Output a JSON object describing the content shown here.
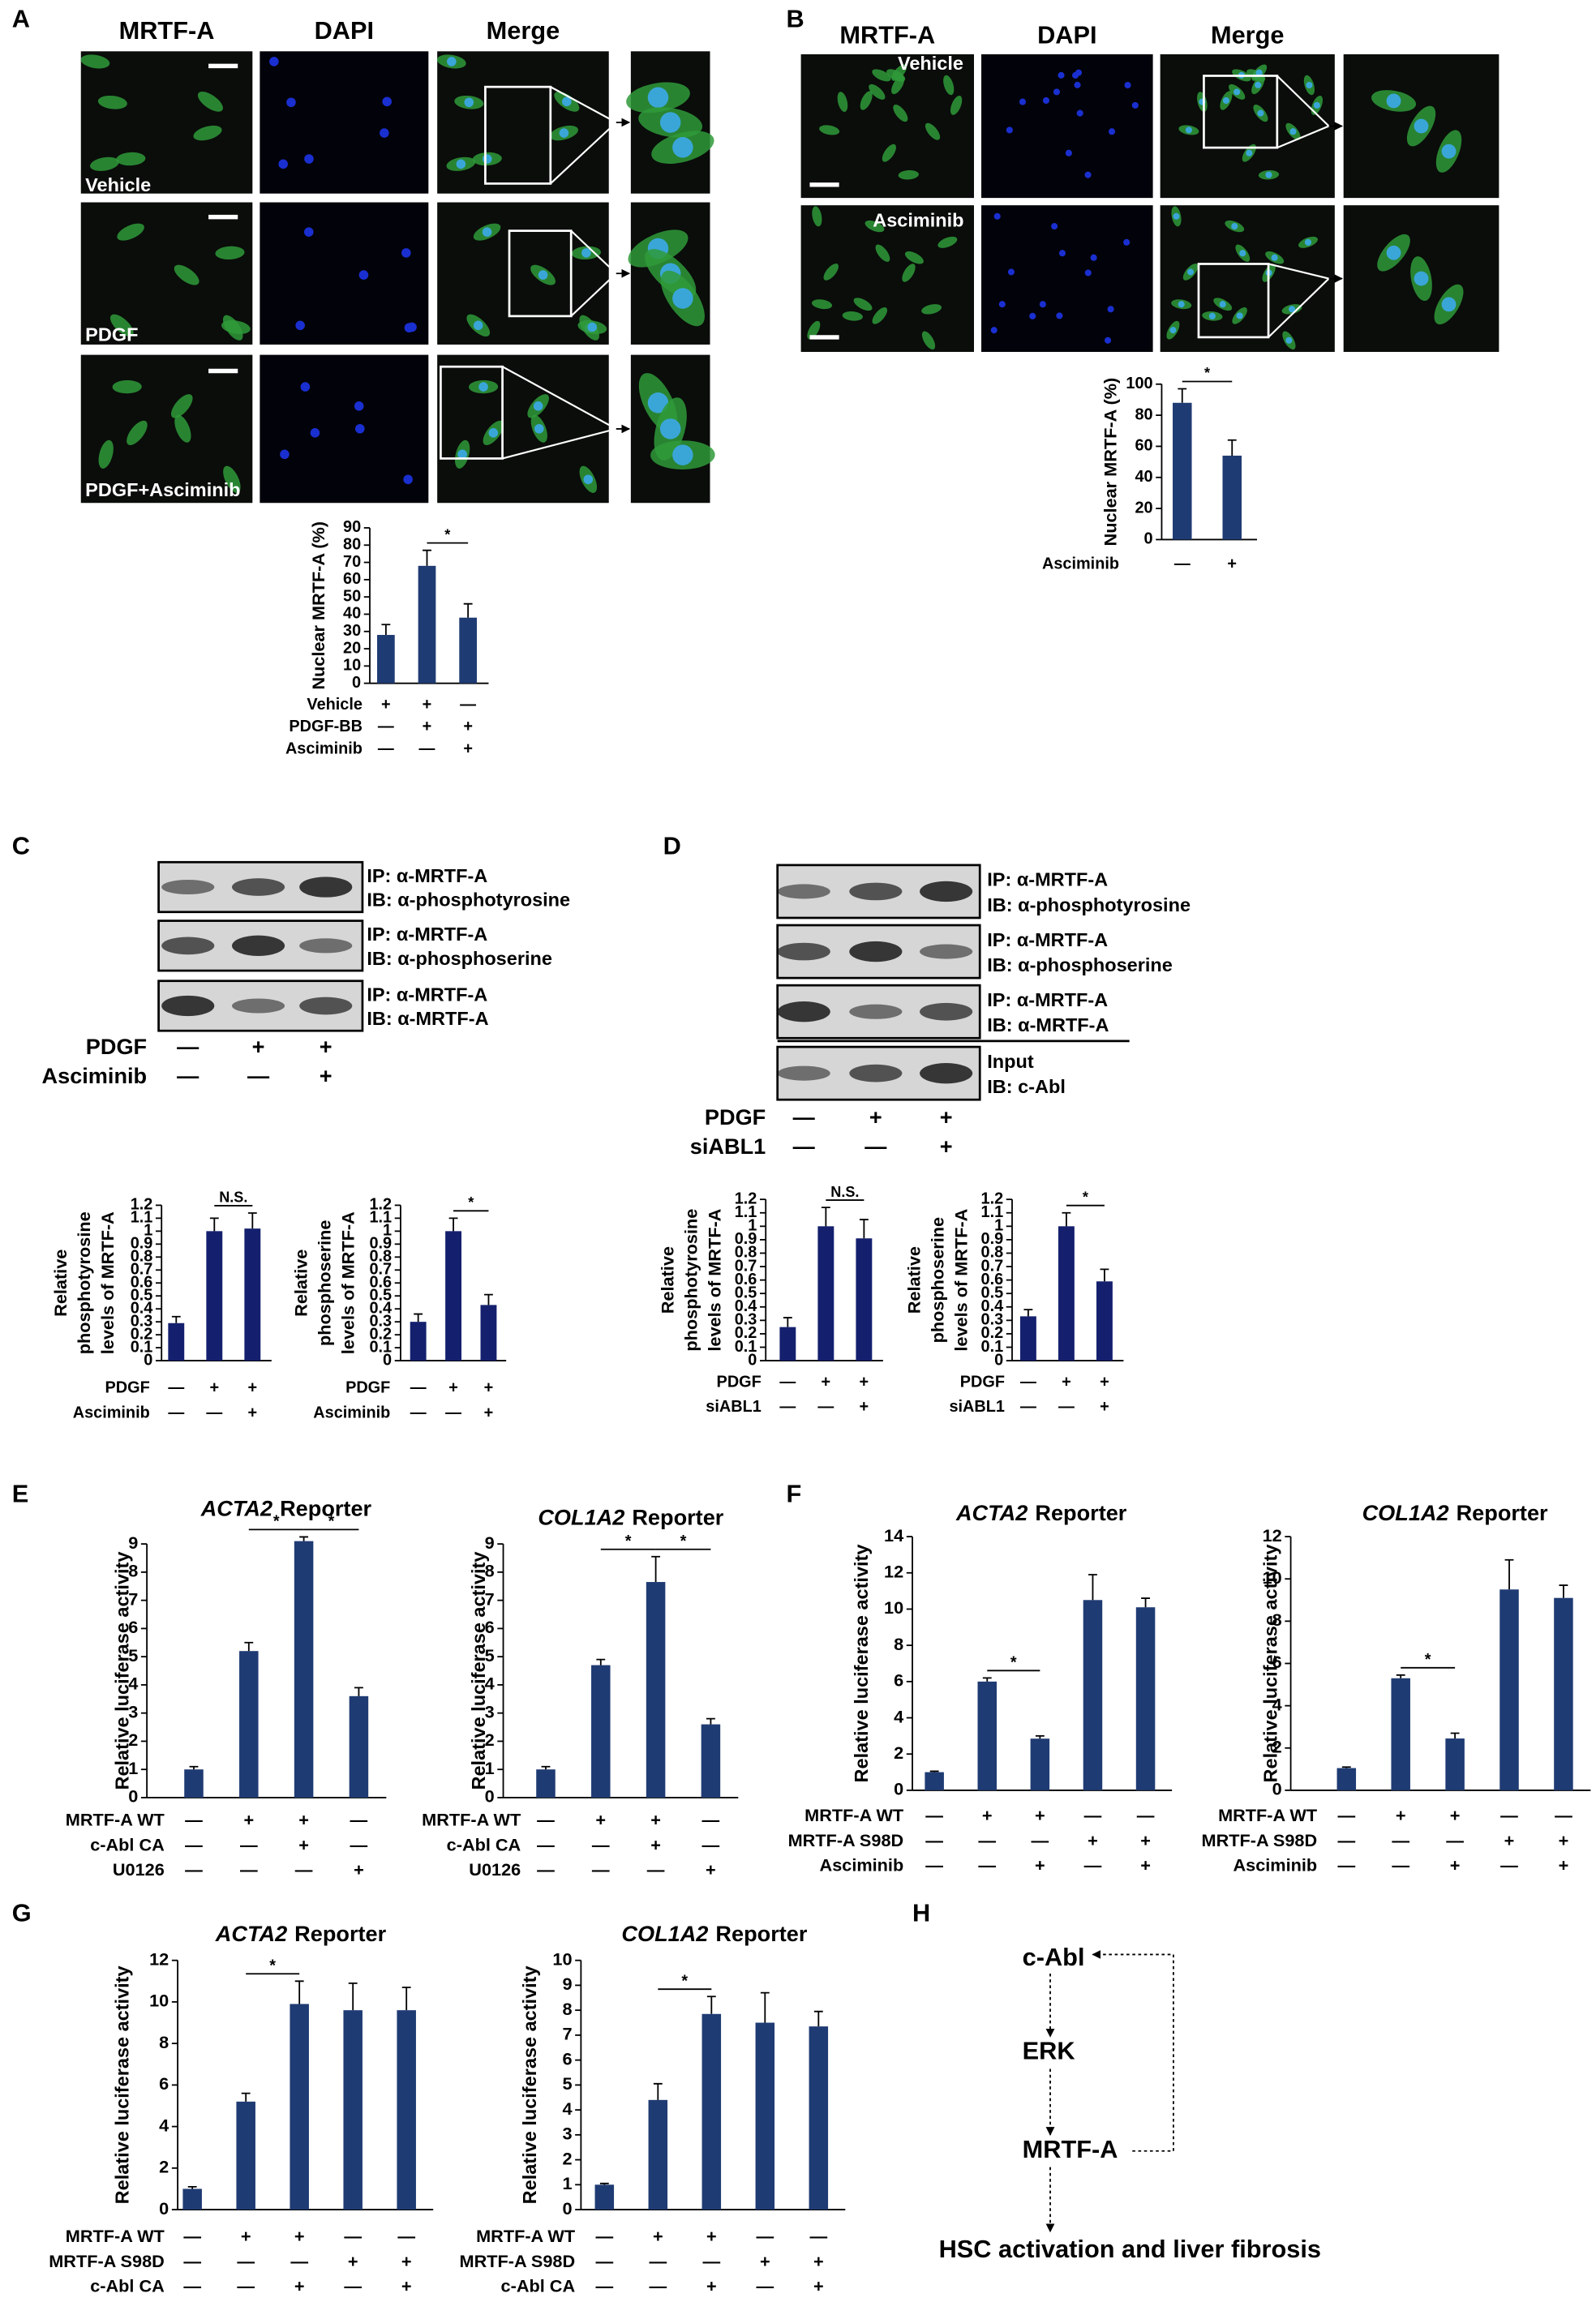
{
  "panels": [
    "A",
    "B",
    "C",
    "D",
    "E",
    "F",
    "G",
    "H"
  ],
  "panel_a": {
    "columns": [
      "MRTF-A",
      "DAPI",
      "Merge"
    ],
    "rows": [
      "Vehicle",
      "PDGF",
      "PDGF+Asciminib"
    ]
  },
  "panel_b": {
    "columns": [
      "MRTF-A",
      "DAPI",
      "Merge"
    ],
    "rows": [
      "Vehicle",
      "Asciminib"
    ]
  },
  "panel_c": {
    "blots": [
      {
        "ip": "IP: α-MRTF-A",
        "ib": "IB: α-phosphotyrosine"
      },
      {
        "ip": "IP: α-MRTF-A",
        "ib": "IB: α-phosphoserine"
      },
      {
        "ip": "IP: α-MRTF-A",
        "ib": "IB: α-MRTF-A"
      }
    ],
    "conditions": [
      {
        "name": "PDGF",
        "signs": [
          "—",
          "+",
          "+"
        ]
      },
      {
        "name": "Asciminib",
        "signs": [
          "—",
          "—",
          "+"
        ]
      }
    ]
  },
  "panel_d": {
    "blots": [
      {
        "ip": "IP: α-MRTF-A",
        "ib": "IB: α-phosphotyrosine"
      },
      {
        "ip": "IP: α-MRTF-A",
        "ib": "IB: α-phosphoserine"
      },
      {
        "ip": "IP: α-MRTF-A",
        "ib": "IB: α-MRTF-A"
      },
      {
        "ip": "Input",
        "ib": "IB: c-Abl"
      }
    ],
    "conditions": [
      {
        "name": "PDGF",
        "signs": [
          "—",
          "+",
          "+"
        ]
      },
      {
        "name": "siABL1",
        "signs": [
          "—",
          "—",
          "+"
        ]
      }
    ]
  },
  "panel_h": {
    "nodes": [
      "c-Abl",
      "ERK",
      "MRTF-A",
      "HSC activation and liver fibrosis"
    ]
  },
  "chart_data": [
    {
      "type": "bar",
      "ylabel": [
        "Nuclear MRTF-A (%)"
      ],
      "values": [
        28,
        68,
        38
      ],
      "errors": [
        6,
        9,
        8
      ],
      "color": "#1f3b73",
      "ylim": [
        0,
        90
      ],
      "yticks": [
        0,
        10,
        20,
        30,
        40,
        50,
        60,
        70,
        80,
        90
      ],
      "conditions": [
        {
          "name": "Vehicle",
          "signs": [
            "+",
            "+",
            "—"
          ]
        },
        {
          "name": "PDGF-BB",
          "signs": [
            "—",
            "+",
            "+"
          ]
        },
        {
          "name": "Asciminib",
          "signs": [
            "—",
            "—",
            "+"
          ]
        }
      ],
      "significance": [
        {
          "label": "*",
          "bars": [
            1,
            2
          ]
        }
      ]
    },
    {
      "type": "bar",
      "ylabel": [
        "Nuclear MRTF-A (%)"
      ],
      "values": [
        88,
        54
      ],
      "errors": [
        9,
        10
      ],
      "color": "#1f3b73",
      "ylim": [
        0,
        100
      ],
      "yticks": [
        0,
        20,
        40,
        60,
        80,
        100
      ],
      "conditions": [
        {
          "name": "Asciminib",
          "signs": [
            "—",
            "+"
          ]
        }
      ],
      "significance": [
        {
          "label": "*",
          "bars": [
            0,
            1
          ]
        }
      ]
    },
    {
      "type": "bar",
      "ylabel": [
        "Relative",
        "phosphotyrosine",
        "levels of MRTF-A"
      ],
      "values": [
        0.29,
        1.0,
        1.02
      ],
      "errors": [
        0.05,
        0.1,
        0.12
      ],
      "color": "#14206e",
      "ylim": [
        0,
        1.2
      ],
      "yticks": [
        0,
        0.1,
        0.2,
        0.3,
        0.4,
        0.5,
        0.6,
        0.7,
        0.8,
        0.9,
        1,
        1.1,
        1.2
      ],
      "conditions": [
        {
          "name": "PDGF",
          "signs": [
            "—",
            "+",
            "+"
          ]
        },
        {
          "name": "Asciminib",
          "signs": [
            "—",
            "—",
            "+"
          ]
        }
      ],
      "significance": [
        {
          "label": "N.S.",
          "bars": [
            1,
            2
          ]
        }
      ]
    },
    {
      "type": "bar",
      "ylabel": [
        "Relative",
        "phosphoserine",
        "levels of MRTF-A"
      ],
      "values": [
        0.3,
        1.0,
        0.43
      ],
      "errors": [
        0.06,
        0.1,
        0.08
      ],
      "color": "#14206e",
      "ylim": [
        0,
        1.2
      ],
      "yticks": [
        0,
        0.1,
        0.2,
        0.3,
        0.4,
        0.5,
        0.6,
        0.7,
        0.8,
        0.9,
        1,
        1.1,
        1.2
      ],
      "conditions": [
        {
          "name": "PDGF",
          "signs": [
            "—",
            "+",
            "+"
          ]
        },
        {
          "name": "Asciminib",
          "signs": [
            "—",
            "—",
            "+"
          ]
        }
      ],
      "significance": [
        {
          "label": "*",
          "bars": [
            1,
            2
          ]
        }
      ]
    },
    {
      "type": "bar",
      "ylabel": [
        "Relative",
        "phosphotyrosine",
        "levels of MRTF-A"
      ],
      "values": [
        0.25,
        1.0,
        0.91
      ],
      "errors": [
        0.07,
        0.14,
        0.14
      ],
      "color": "#14206e",
      "ylim": [
        0,
        1.2
      ],
      "yticks": [
        0,
        0.1,
        0.2,
        0.3,
        0.4,
        0.5,
        0.6,
        0.7,
        0.8,
        0.9,
        1,
        1.1,
        1.2
      ],
      "conditions": [
        {
          "name": "PDGF",
          "signs": [
            "—",
            "+",
            "+"
          ]
        },
        {
          "name": "siABL1",
          "signs": [
            "—",
            "—",
            "+"
          ]
        }
      ],
      "significance": [
        {
          "label": "N.S.",
          "bars": [
            1,
            2
          ]
        }
      ]
    },
    {
      "type": "bar",
      "ylabel": [
        "Relative",
        "phosphoserine",
        "levels of MRTF-A"
      ],
      "values": [
        0.33,
        1.0,
        0.59
      ],
      "errors": [
        0.05,
        0.1,
        0.09
      ],
      "color": "#14206e",
      "ylim": [
        0,
        1.2
      ],
      "yticks": [
        0,
        0.1,
        0.2,
        0.3,
        0.4,
        0.5,
        0.6,
        0.7,
        0.8,
        0.9,
        1,
        1.1,
        1.2
      ],
      "conditions": [
        {
          "name": "PDGF",
          "signs": [
            "—",
            "+",
            "+"
          ]
        },
        {
          "name": "siABL1",
          "signs": [
            "—",
            "—",
            "+"
          ]
        }
      ],
      "significance": [
        {
          "label": "*",
          "bars": [
            1,
            2
          ]
        }
      ]
    },
    {
      "type": "bar",
      "title_italic": "ACTA2",
      "title": "Reporter",
      "ylabel": [
        "Relative luciferase activity"
      ],
      "values": [
        1,
        5.2,
        9.1,
        3.6
      ],
      "errors": [
        0.1,
        0.3,
        0.15,
        0.3
      ],
      "color": "#1f3b73",
      "ylim": [
        0,
        9
      ],
      "yticks": [
        0,
        1,
        2,
        3,
        4,
        5,
        6,
        7,
        8,
        9
      ],
      "conditions": [
        {
          "name": "MRTF-A WT",
          "signs": [
            "—",
            "+",
            "+",
            "—"
          ]
        },
        {
          "name": "c-Abl CA",
          "signs": [
            "—",
            "—",
            "+",
            "—"
          ]
        },
        {
          "name": "U0126",
          "signs": [
            "—",
            "—",
            "—",
            "+"
          ]
        }
      ],
      "significance": [
        {
          "label": "*",
          "bars": [
            1,
            2
          ]
        },
        {
          "label": "*",
          "bars": [
            2,
            3
          ]
        }
      ]
    },
    {
      "type": "bar",
      "title_italic": "COL1A2",
      "title": "Reporter",
      "ylabel": [
        "Relative luciferase activity"
      ],
      "values": [
        1,
        4.7,
        7.65,
        2.6
      ],
      "errors": [
        0.1,
        0.2,
        0.9,
        0.2
      ],
      "color": "#1f3b73",
      "ylim": [
        0,
        9
      ],
      "yticks": [
        0,
        1,
        2,
        3,
        4,
        5,
        6,
        7,
        8,
        9
      ],
      "conditions": [
        {
          "name": "MRTF-A WT",
          "signs": [
            "—",
            "+",
            "+",
            "—"
          ]
        },
        {
          "name": "c-Abl CA",
          "signs": [
            "—",
            "—",
            "+",
            "—"
          ]
        },
        {
          "name": "U0126",
          "signs": [
            "—",
            "—",
            "—",
            "+"
          ]
        }
      ],
      "significance": [
        {
          "label": "*",
          "bars": [
            1,
            2
          ]
        },
        {
          "label": "*",
          "bars": [
            2,
            3
          ]
        }
      ]
    },
    {
      "type": "bar",
      "title_italic": "ACTA2",
      "title": "Reporter",
      "ylabel": [
        "Relative luciferase activity"
      ],
      "values": [
        1,
        6,
        2.85,
        10.5,
        10.1
      ],
      "errors": [
        0.05,
        0.2,
        0.15,
        1.4,
        0.5
      ],
      "color": "#1f3b73",
      "ylim": [
        0,
        14
      ],
      "yticks": [
        0,
        2,
        4,
        6,
        8,
        10,
        12,
        14
      ],
      "conditions": [
        {
          "name": "MRTF-A WT",
          "signs": [
            "—",
            "+",
            "+",
            "—",
            "—"
          ]
        },
        {
          "name": "MRTF-A S98D",
          "signs": [
            "—",
            "—",
            "—",
            "+",
            "+"
          ]
        },
        {
          "name": "Asciminib",
          "signs": [
            "—",
            "—",
            "+",
            "—",
            "+"
          ]
        }
      ],
      "significance": [
        {
          "label": "*",
          "bars": [
            1,
            2
          ]
        }
      ]
    },
    {
      "type": "bar",
      "title_italic": "COL1A2",
      "title": "Reporter",
      "ylabel": [
        "Relative luciferase activity"
      ],
      "values": [
        1.05,
        5.3,
        2.45,
        9.5,
        9.1
      ],
      "errors": [
        0.05,
        0.15,
        0.25,
        1.4,
        0.6
      ],
      "color": "#1f3b73",
      "ylim": [
        0,
        12
      ],
      "yticks": [
        0,
        2,
        4,
        6,
        8,
        10,
        12
      ],
      "conditions": [
        {
          "name": "MRTF-A WT",
          "signs": [
            "—",
            "+",
            "+",
            "—",
            "—"
          ]
        },
        {
          "name": "MRTF-A S98D",
          "signs": [
            "—",
            "—",
            "—",
            "+",
            "+"
          ]
        },
        {
          "name": "Asciminib",
          "signs": [
            "—",
            "—",
            "+",
            "—",
            "+"
          ]
        }
      ],
      "significance": [
        {
          "label": "*",
          "bars": [
            1,
            2
          ]
        }
      ]
    },
    {
      "type": "bar",
      "title_italic": "ACTA2",
      "title": "Reporter",
      "ylabel": [
        "Relative luciferase activity"
      ],
      "values": [
        1,
        5.2,
        9.9,
        9.6,
        9.6
      ],
      "errors": [
        0.1,
        0.4,
        1.1,
        1.3,
        1.1
      ],
      "color": "#1f3b73",
      "ylim": [
        0,
        12
      ],
      "yticks": [
        0,
        2,
        4,
        6,
        8,
        10,
        12
      ],
      "conditions": [
        {
          "name": "MRTF-A WT",
          "signs": [
            "—",
            "+",
            "+",
            "—",
            "—"
          ]
        },
        {
          "name": "MRTF-A S98D",
          "signs": [
            "—",
            "—",
            "—",
            "+",
            "+"
          ]
        },
        {
          "name": "c-Abl CA",
          "signs": [
            "—",
            "—",
            "+",
            "—",
            "+"
          ]
        }
      ],
      "significance": [
        {
          "label": "*",
          "bars": [
            1,
            2
          ]
        }
      ]
    },
    {
      "type": "bar",
      "title_italic": "COL1A2",
      "title": "Reporter",
      "ylabel": [
        "Relative luciferase activity"
      ],
      "values": [
        1,
        4.4,
        7.85,
        7.5,
        7.35
      ],
      "errors": [
        0.05,
        0.65,
        0.7,
        1.2,
        0.6
      ],
      "color": "#1f3b73",
      "ylim": [
        0,
        10
      ],
      "yticks": [
        0,
        1,
        2,
        3,
        4,
        5,
        6,
        7,
        8,
        9,
        10
      ],
      "conditions": [
        {
          "name": "MRTF-A WT",
          "signs": [
            "—",
            "+",
            "+",
            "—",
            "—"
          ]
        },
        {
          "name": "MRTF-A S98D",
          "signs": [
            "—",
            "—",
            "—",
            "+",
            "+"
          ]
        },
        {
          "name": "c-Abl CA",
          "signs": [
            "—",
            "—",
            "+",
            "—",
            "+"
          ]
        }
      ],
      "significance": [
        {
          "label": "*",
          "bars": [
            1,
            2
          ]
        }
      ]
    }
  ]
}
